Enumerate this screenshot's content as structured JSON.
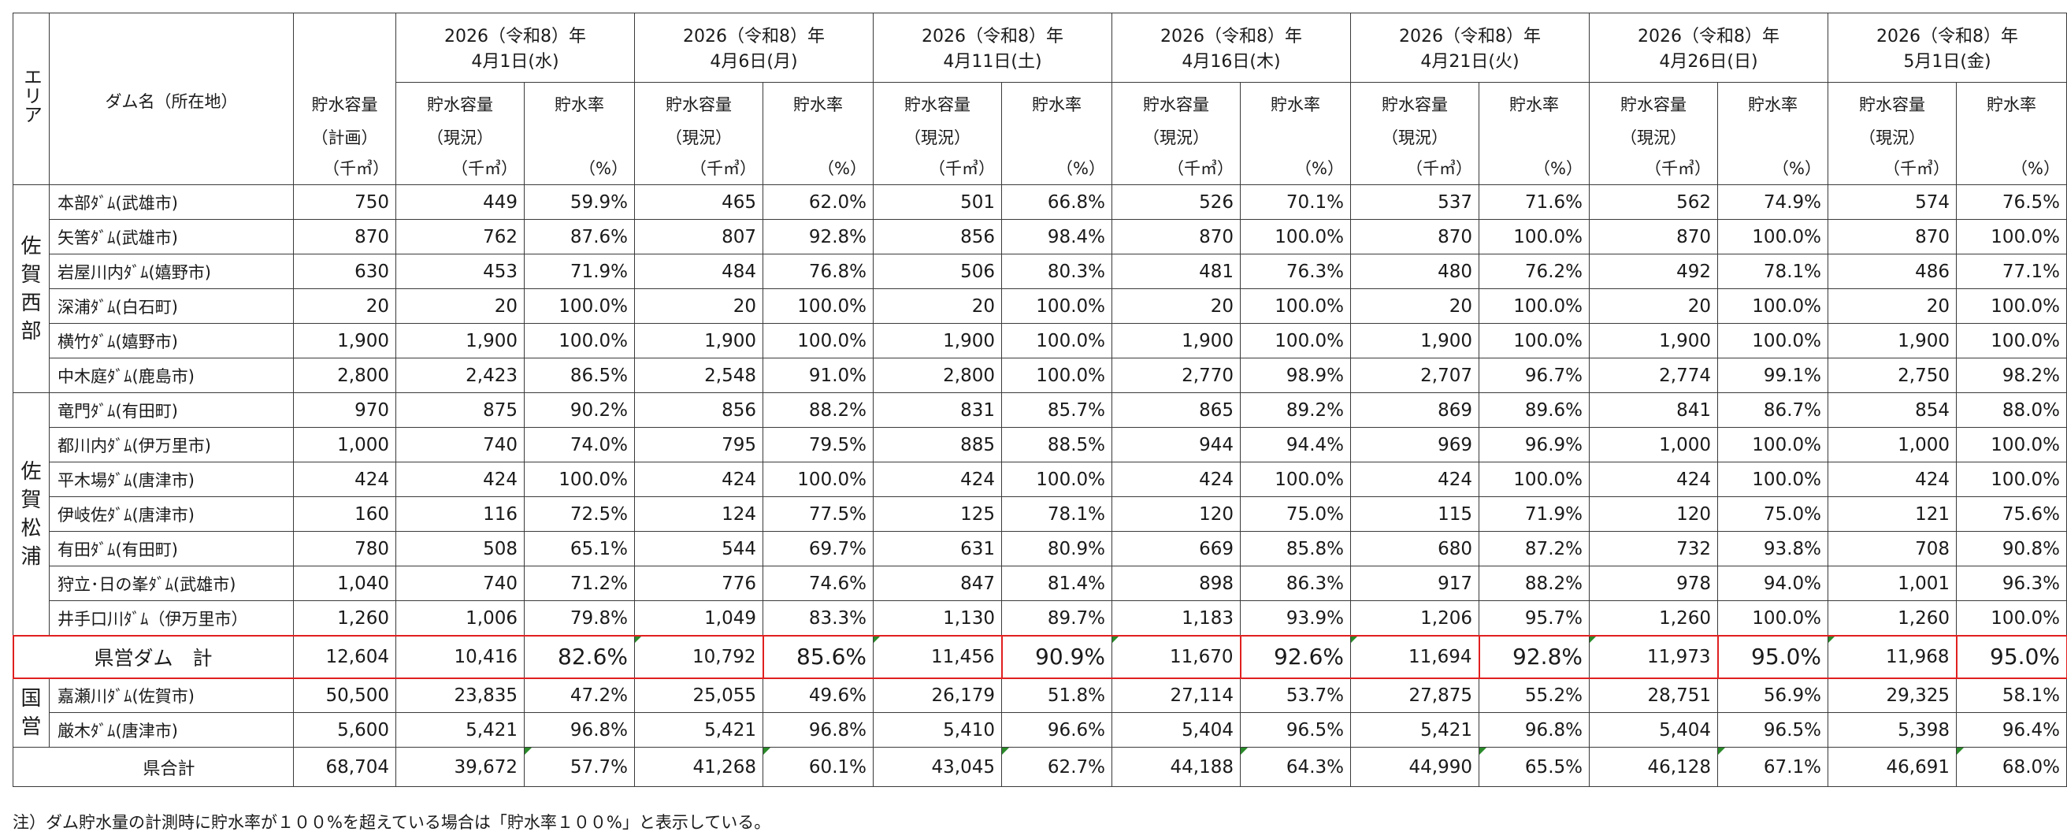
{
  "header": {
    "area_label": "エリア",
    "dam_label": "ダム名（所在地）",
    "plan_label": "貯水容量",
    "plan_label2": "（計画）",
    "unit_volume": "（千㎥）",
    "unit_rate": "（%）",
    "current_label": "貯水容量",
    "current_label2": "（現況）",
    "rate_label": "貯水率",
    "dates": [
      {
        "line1": "2026（令和8）年",
        "line2": "4月1日(水)"
      },
      {
        "line1": "2026（令和8）年",
        "line2": "4月6日(月)"
      },
      {
        "line1": "2026（令和8）年",
        "line2": "4月11日(土)"
      },
      {
        "line1": "2026（令和8）年",
        "line2": "4月16日(木)"
      },
      {
        "line1": "2026（令和8）年",
        "line2": "4月21日(火)"
      },
      {
        "line1": "2026（令和8）年",
        "line2": "4月26日(日)"
      },
      {
        "line1": "2026（令和8）年",
        "line2": "5月1日(金)"
      }
    ]
  },
  "groups": [
    {
      "area": [
        "佐",
        "賀",
        "西",
        "部"
      ],
      "rows": [
        {
          "name": "本部ﾀﾞﾑ(武雄市)",
          "plan": "750",
          "vals": [
            [
              "449",
              "59.9%"
            ],
            [
              "465",
              "62.0%"
            ],
            [
              "501",
              "66.8%"
            ],
            [
              "526",
              "70.1%"
            ],
            [
              "537",
              "71.6%"
            ],
            [
              "562",
              "74.9%"
            ],
            [
              "574",
              "76.5%"
            ]
          ]
        },
        {
          "name": "矢筈ﾀﾞﾑ(武雄市)",
          "plan": "870",
          "vals": [
            [
              "762",
              "87.6%"
            ],
            [
              "807",
              "92.8%"
            ],
            [
              "856",
              "98.4%"
            ],
            [
              "870",
              "100.0%"
            ],
            [
              "870",
              "100.0%"
            ],
            [
              "870",
              "100.0%"
            ],
            [
              "870",
              "100.0%"
            ]
          ]
        },
        {
          "name": "岩屋川内ﾀﾞﾑ(嬉野市)",
          "plan": "630",
          "vals": [
            [
              "453",
              "71.9%"
            ],
            [
              "484",
              "76.8%"
            ],
            [
              "506",
              "80.3%"
            ],
            [
              "481",
              "76.3%"
            ],
            [
              "480",
              "76.2%"
            ],
            [
              "492",
              "78.1%"
            ],
            [
              "486",
              "77.1%"
            ]
          ]
        },
        {
          "name": "深浦ﾀﾞﾑ(白石町)",
          "plan": "20",
          "vals": [
            [
              "20",
              "100.0%"
            ],
            [
              "20",
              "100.0%"
            ],
            [
              "20",
              "100.0%"
            ],
            [
              "20",
              "100.0%"
            ],
            [
              "20",
              "100.0%"
            ],
            [
              "20",
              "100.0%"
            ],
            [
              "20",
              "100.0%"
            ]
          ]
        },
        {
          "name": "横竹ﾀﾞﾑ(嬉野市)",
          "plan": "1,900",
          "vals": [
            [
              "1,900",
              "100.0%"
            ],
            [
              "1,900",
              "100.0%"
            ],
            [
              "1,900",
              "100.0%"
            ],
            [
              "1,900",
              "100.0%"
            ],
            [
              "1,900",
              "100.0%"
            ],
            [
              "1,900",
              "100.0%"
            ],
            [
              "1,900",
              "100.0%"
            ]
          ]
        },
        {
          "name": "中木庭ﾀﾞﾑ(鹿島市)",
          "plan": "2,800",
          "vals": [
            [
              "2,423",
              "86.5%"
            ],
            [
              "2,548",
              "91.0%"
            ],
            [
              "2,800",
              "100.0%"
            ],
            [
              "2,770",
              "98.9%"
            ],
            [
              "2,707",
              "96.7%"
            ],
            [
              "2,774",
              "99.1%"
            ],
            [
              "2,750",
              "98.2%"
            ]
          ]
        }
      ]
    },
    {
      "area": [
        "佐",
        "賀",
        "松",
        "浦"
      ],
      "rows": [
        {
          "name": "竜門ﾀﾞﾑ(有田町)",
          "plan": "970",
          "vals": [
            [
              "875",
              "90.2%"
            ],
            [
              "856",
              "88.2%"
            ],
            [
              "831",
              "85.7%"
            ],
            [
              "865",
              "89.2%"
            ],
            [
              "869",
              "89.6%"
            ],
            [
              "841",
              "86.7%"
            ],
            [
              "854",
              "88.0%"
            ]
          ]
        },
        {
          "name": "都川内ﾀﾞﾑ(伊万里市)",
          "plan": "1,000",
          "vals": [
            [
              "740",
              "74.0%"
            ],
            [
              "795",
              "79.5%"
            ],
            [
              "885",
              "88.5%"
            ],
            [
              "944",
              "94.4%"
            ],
            [
              "969",
              "96.9%"
            ],
            [
              "1,000",
              "100.0%"
            ],
            [
              "1,000",
              "100.0%"
            ]
          ]
        },
        {
          "name": "平木場ﾀﾞﾑ(唐津市)",
          "plan": "424",
          "vals": [
            [
              "424",
              "100.0%"
            ],
            [
              "424",
              "100.0%"
            ],
            [
              "424",
              "100.0%"
            ],
            [
              "424",
              "100.0%"
            ],
            [
              "424",
              "100.0%"
            ],
            [
              "424",
              "100.0%"
            ],
            [
              "424",
              "100.0%"
            ]
          ]
        },
        {
          "name": "伊岐佐ﾀﾞﾑ(唐津市)",
          "plan": "160",
          "vals": [
            [
              "116",
              "72.5%"
            ],
            [
              "124",
              "77.5%"
            ],
            [
              "125",
              "78.1%"
            ],
            [
              "120",
              "75.0%"
            ],
            [
              "115",
              "71.9%"
            ],
            [
              "120",
              "75.0%"
            ],
            [
              "121",
              "75.6%"
            ]
          ]
        },
        {
          "name": "有田ﾀﾞﾑ(有田町)",
          "plan": "780",
          "vals": [
            [
              "508",
              "65.1%"
            ],
            [
              "544",
              "69.7%"
            ],
            [
              "631",
              "80.9%"
            ],
            [
              "669",
              "85.8%"
            ],
            [
              "680",
              "87.2%"
            ],
            [
              "732",
              "93.8%"
            ],
            [
              "708",
              "90.8%"
            ]
          ]
        },
        {
          "name": "狩立･日の峯ﾀﾞﾑ(武雄市)",
          "plan": "1,040",
          "vals": [
            [
              "740",
              "71.2%"
            ],
            [
              "776",
              "74.6%"
            ],
            [
              "847",
              "81.4%"
            ],
            [
              "898",
              "86.3%"
            ],
            [
              "917",
              "88.2%"
            ],
            [
              "978",
              "94.0%"
            ],
            [
              "1,001",
              "96.3%"
            ]
          ]
        },
        {
          "name": "井手口川ﾀﾞﾑ（伊万里市）",
          "plan": "1,260",
          "vals": [
            [
              "1,006",
              "79.8%"
            ],
            [
              "1,049",
              "83.3%"
            ],
            [
              "1,130",
              "89.7%"
            ],
            [
              "1,183",
              "93.9%"
            ],
            [
              "1,206",
              "95.7%"
            ],
            [
              "1,260",
              "100.0%"
            ],
            [
              "1,260",
              "100.0%"
            ]
          ]
        }
      ]
    }
  ],
  "pref_total": {
    "name": "県営ダム　計",
    "plan": "12,604",
    "vals": [
      [
        "10,416",
        "82.6%"
      ],
      [
        "10,792",
        "85.6%"
      ],
      [
        "11,456",
        "90.9%"
      ],
      [
        "11,670",
        "92.6%"
      ],
      [
        "11,694",
        "92.8%"
      ],
      [
        "11,973",
        "95.0%"
      ],
      [
        "11,968",
        "95.0%"
      ]
    ]
  },
  "national": {
    "area": [
      "国",
      "営"
    ],
    "rows": [
      {
        "name": "嘉瀬川ﾀﾞﾑ(佐賀市)",
        "plan": "50,500",
        "vals": [
          [
            "23,835",
            "47.2%"
          ],
          [
            "25,055",
            "49.6%"
          ],
          [
            "26,179",
            "51.8%"
          ],
          [
            "27,114",
            "53.7%"
          ],
          [
            "27,875",
            "55.2%"
          ],
          [
            "28,751",
            "56.9%"
          ],
          [
            "29,325",
            "58.1%"
          ]
        ]
      },
      {
        "name": "厳木ﾀﾞﾑ(唐津市)",
        "plan": "5,600",
        "vals": [
          [
            "5,421",
            "96.8%"
          ],
          [
            "5,421",
            "96.8%"
          ],
          [
            "5,410",
            "96.6%"
          ],
          [
            "5,404",
            "96.5%"
          ],
          [
            "5,421",
            "96.8%"
          ],
          [
            "5,404",
            "96.5%"
          ],
          [
            "5,398",
            "96.4%"
          ]
        ]
      }
    ]
  },
  "grand_total": {
    "name": "県合計",
    "plan": "68,704",
    "vals": [
      [
        "39,672",
        "57.7%"
      ],
      [
        "41,268",
        "60.1%"
      ],
      [
        "43,045",
        "62.7%"
      ],
      [
        "44,188",
        "64.3%"
      ],
      [
        "44,990",
        "65.5%"
      ],
      [
        "46,128",
        "67.1%"
      ],
      [
        "46,691",
        "68.0%"
      ]
    ]
  },
  "note": "注）ダム貯水量の計測時に貯水率が１００%を超えている場合は「貯水率１００%」と表示している。",
  "colors": {
    "highlight_border": "#e02020",
    "marker": "#2a8a2a"
  }
}
